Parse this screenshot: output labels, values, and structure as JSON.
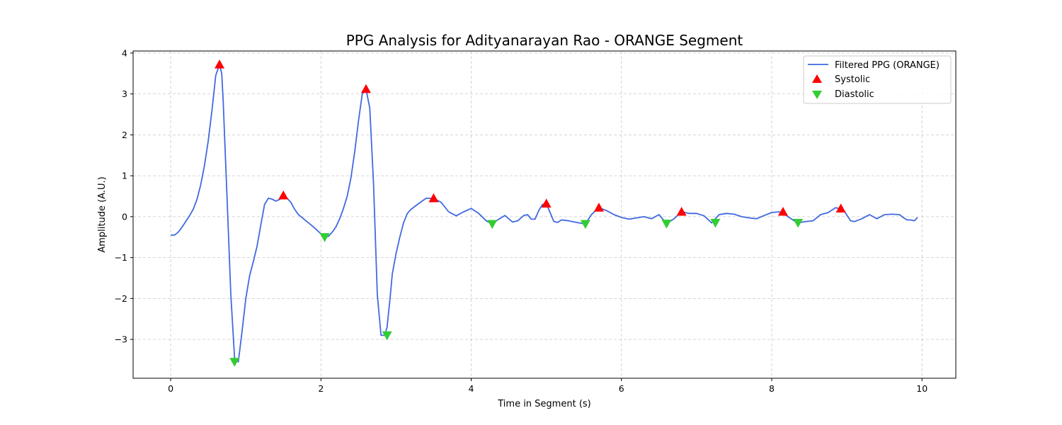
{
  "chart_data": {
    "type": "line",
    "title": "PPG Analysis for Adityanarayan Rao - ORANGE Segment",
    "xlabel": "Time in Segment (s)",
    "ylabel": "Amplitude (A.U.)",
    "xlim": [
      -0.5,
      10.45
    ],
    "ylim": [
      -3.95,
      4.05
    ],
    "xticks": [
      0,
      2,
      4,
      6,
      8,
      10
    ],
    "xtick_labels": [
      "0",
      "2",
      "4",
      "6",
      "8",
      "10"
    ],
    "yticks": [
      -3,
      -2,
      -1,
      0,
      1,
      2,
      3,
      4
    ],
    "ytick_labels": [
      "−3",
      "−2",
      "−1",
      "0",
      "1",
      "2",
      "3",
      "4"
    ],
    "grid": true,
    "legend_position": "top-right",
    "series": [
      {
        "name": "Filtered PPG (ORANGE)",
        "kind": "line",
        "color": "#4169e1",
        "x": [
          0.0,
          0.05,
          0.1,
          0.15,
          0.2,
          0.25,
          0.3,
          0.35,
          0.4,
          0.45,
          0.5,
          0.55,
          0.6,
          0.65,
          0.68,
          0.7,
          0.75,
          0.8,
          0.85,
          0.9,
          0.95,
          1.0,
          1.05,
          1.1,
          1.15,
          1.2,
          1.25,
          1.3,
          1.35,
          1.4,
          1.45,
          1.5,
          1.55,
          1.6,
          1.65,
          1.7,
          1.8,
          1.9,
          2.0,
          2.05,
          2.1,
          2.15,
          2.2,
          2.25,
          2.3,
          2.35,
          2.4,
          2.45,
          2.5,
          2.55,
          2.6,
          2.65,
          2.7,
          2.75,
          2.8,
          2.85,
          2.88,
          2.92,
          2.95,
          3.0,
          3.05,
          3.1,
          3.15,
          3.2,
          3.3,
          3.4,
          3.5,
          3.6,
          3.7,
          3.8,
          3.9,
          4.0,
          4.1,
          4.2,
          4.28,
          4.35,
          4.45,
          4.55,
          4.62,
          4.7,
          4.75,
          4.8,
          4.85,
          4.9,
          4.95,
          5.0,
          5.05,
          5.1,
          5.15,
          5.2,
          5.3,
          5.4,
          5.52,
          5.6,
          5.7,
          5.8,
          5.9,
          6.0,
          6.1,
          6.2,
          6.3,
          6.4,
          6.5,
          6.6,
          6.7,
          6.8,
          6.9,
          7.0,
          7.1,
          7.2,
          7.3,
          7.4,
          7.5,
          7.6,
          7.7,
          7.8,
          7.9,
          8.0,
          8.1,
          8.2,
          8.3,
          8.35,
          8.45,
          8.55,
          8.65,
          8.75,
          8.85,
          8.95,
          9.05,
          9.1,
          9.2,
          9.3,
          9.4,
          9.5,
          9.6,
          9.7,
          9.75,
          9.8,
          9.85,
          9.9,
          9.94
        ],
        "y": [
          -0.45,
          -0.45,
          -0.38,
          -0.26,
          -0.12,
          0.02,
          0.18,
          0.42,
          0.78,
          1.25,
          1.85,
          2.6,
          3.45,
          3.72,
          3.5,
          2.8,
          0.5,
          -1.9,
          -3.45,
          -3.55,
          -2.8,
          -2.0,
          -1.45,
          -1.1,
          -0.72,
          -0.2,
          0.3,
          0.45,
          0.43,
          0.38,
          0.42,
          0.52,
          0.45,
          0.35,
          0.18,
          0.05,
          -0.1,
          -0.25,
          -0.42,
          -0.5,
          -0.48,
          -0.38,
          -0.25,
          -0.05,
          0.2,
          0.5,
          0.95,
          1.6,
          2.35,
          3.0,
          3.12,
          2.65,
          0.8,
          -1.9,
          -2.9,
          -2.9,
          -2.7,
          -2.0,
          -1.4,
          -0.9,
          -0.5,
          -0.15,
          0.08,
          0.18,
          0.32,
          0.45,
          0.45,
          0.35,
          0.12,
          0.02,
          0.12,
          0.2,
          0.08,
          -0.1,
          -0.18,
          -0.08,
          0.03,
          -0.13,
          -0.1,
          0.03,
          0.05,
          -0.06,
          -0.06,
          0.15,
          0.3,
          0.32,
          0.1,
          -0.12,
          -0.14,
          -0.08,
          -0.1,
          -0.14,
          -0.18,
          0.05,
          0.22,
          0.15,
          0.05,
          -0.02,
          -0.06,
          -0.03,
          0.0,
          -0.05,
          0.05,
          -0.17,
          -0.05,
          0.12,
          0.08,
          0.08,
          0.02,
          -0.15,
          0.05,
          0.08,
          0.06,
          0.0,
          -0.03,
          -0.05,
          0.03,
          0.1,
          0.12,
          0.02,
          -0.1,
          -0.15,
          -0.12,
          -0.1,
          0.05,
          0.1,
          0.22,
          0.18,
          -0.1,
          -0.12,
          -0.05,
          0.05,
          -0.05,
          0.05,
          0.06,
          0.05,
          -0.02,
          -0.08,
          -0.08,
          -0.1,
          -0.02
        ]
      },
      {
        "name": "Systolic",
        "kind": "marker-up",
        "color": "#ff0000",
        "x": [
          0.65,
          1.5,
          2.6,
          3.5,
          5.0,
          5.7,
          6.8,
          8.15,
          8.92
        ],
        "y": [
          3.72,
          0.52,
          3.12,
          0.45,
          0.32,
          0.22,
          0.12,
          0.12,
          0.2
        ]
      },
      {
        "name": "Diastolic",
        "kind": "marker-down",
        "color": "#32cd32",
        "x": [
          0.85,
          2.05,
          2.88,
          4.28,
          5.52,
          6.6,
          7.25,
          8.35
        ],
        "y": [
          -3.55,
          -0.5,
          -2.9,
          -0.18,
          -0.18,
          -0.17,
          -0.15,
          -0.15
        ]
      }
    ]
  }
}
